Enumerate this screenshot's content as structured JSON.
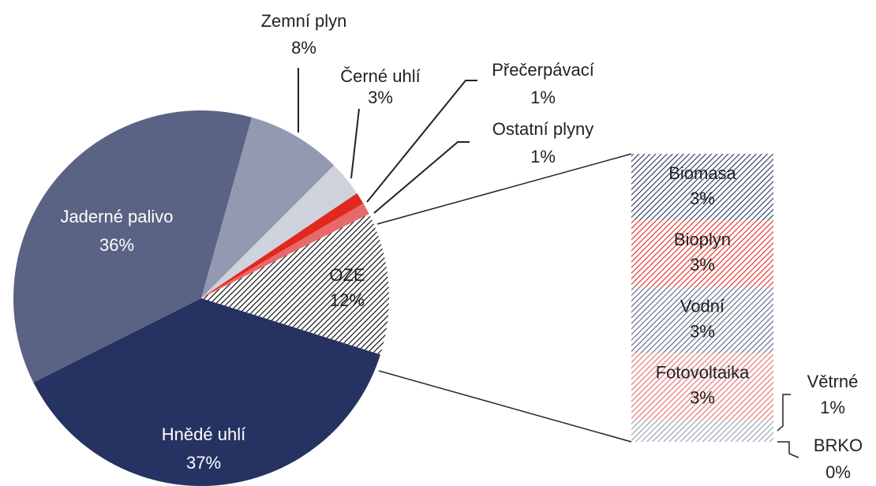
{
  "chart_data": {
    "type": "pie",
    "categories": [
      "Zemní plyn",
      "Černé uhlí",
      "Přečerpávací",
      "Ostatní plyny",
      "OZE",
      "Hnědé uhlí",
      "Jaderné palivo"
    ],
    "values": [
      8,
      3,
      1,
      1,
      12,
      37,
      36
    ],
    "value_labels": [
      "8%",
      "3%",
      "1%",
      "1%",
      "12%",
      "37%",
      "36%"
    ],
    "colors": [
      "#9399b0",
      "#cfd2dd",
      "#e0281e",
      "#e8696a",
      "#000000",
      "#263261",
      "#5a6384"
    ],
    "patterns": [
      "solid",
      "solid",
      "solid",
      "solid",
      "hatch",
      "solid",
      "solid"
    ],
    "breakdown": {
      "type": "bar",
      "categories": [
        "Biomasa",
        "Bioplyn",
        "Vodní",
        "Fotovoltaika",
        "Větrné",
        "BRKO"
      ],
      "values": [
        3,
        3,
        3,
        3,
        1,
        0
      ],
      "value_labels": [
        "3%",
        "3%",
        "3%",
        "3%",
        "1%",
        "0%"
      ],
      "colors": [
        "#263261",
        "#e0281e",
        "#5a6384",
        "#e8696a",
        "#9399b0",
        "#cfd2dd"
      ],
      "patterns": [
        "hatch",
        "hatch",
        "hatch",
        "hatch",
        "hatch",
        "hatch"
      ]
    }
  }
}
